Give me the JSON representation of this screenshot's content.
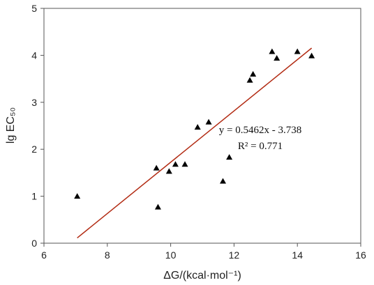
{
  "chart_data": {
    "type": "scatter",
    "xlabel": "ΔG/(kcal·mol⁻¹)",
    "ylabel": "lg EC₅₀",
    "xlim": [
      6,
      16
    ],
    "ylim": [
      0,
      5
    ],
    "x_ticks": [
      "6",
      "8",
      "10",
      "12",
      "14",
      "16"
    ],
    "y_ticks": [
      "0",
      "1",
      "2",
      "3",
      "4",
      "5"
    ],
    "grid": false,
    "series": [
      {
        "marker": "triangle",
        "color": "#000000",
        "points": [
          {
            "x": 7.05,
            "y": 1.0
          },
          {
            "x": 9.55,
            "y": 1.6
          },
          {
            "x": 9.6,
            "y": 0.77
          },
          {
            "x": 9.95,
            "y": 1.53
          },
          {
            "x": 10.15,
            "y": 1.68
          },
          {
            "x": 10.45,
            "y": 1.68
          },
          {
            "x": 10.85,
            "y": 2.47
          },
          {
            "x": 11.2,
            "y": 2.58
          },
          {
            "x": 11.65,
            "y": 1.32
          },
          {
            "x": 11.85,
            "y": 1.83
          },
          {
            "x": 12.5,
            "y": 3.47
          },
          {
            "x": 12.6,
            "y": 3.6
          },
          {
            "x": 13.2,
            "y": 4.08
          },
          {
            "x": 13.35,
            "y": 3.94
          },
          {
            "x": 14.0,
            "y": 4.08
          },
          {
            "x": 14.45,
            "y": 3.99
          }
        ]
      }
    ],
    "trendline": {
      "slope": 0.5462,
      "intercept": -3.738,
      "x_range": [
        7.05,
        14.45
      ],
      "color": "#b22a12"
    },
    "annotations": [
      "y = 0.5462x - 3.738",
      "R² = 0.771"
    ]
  }
}
